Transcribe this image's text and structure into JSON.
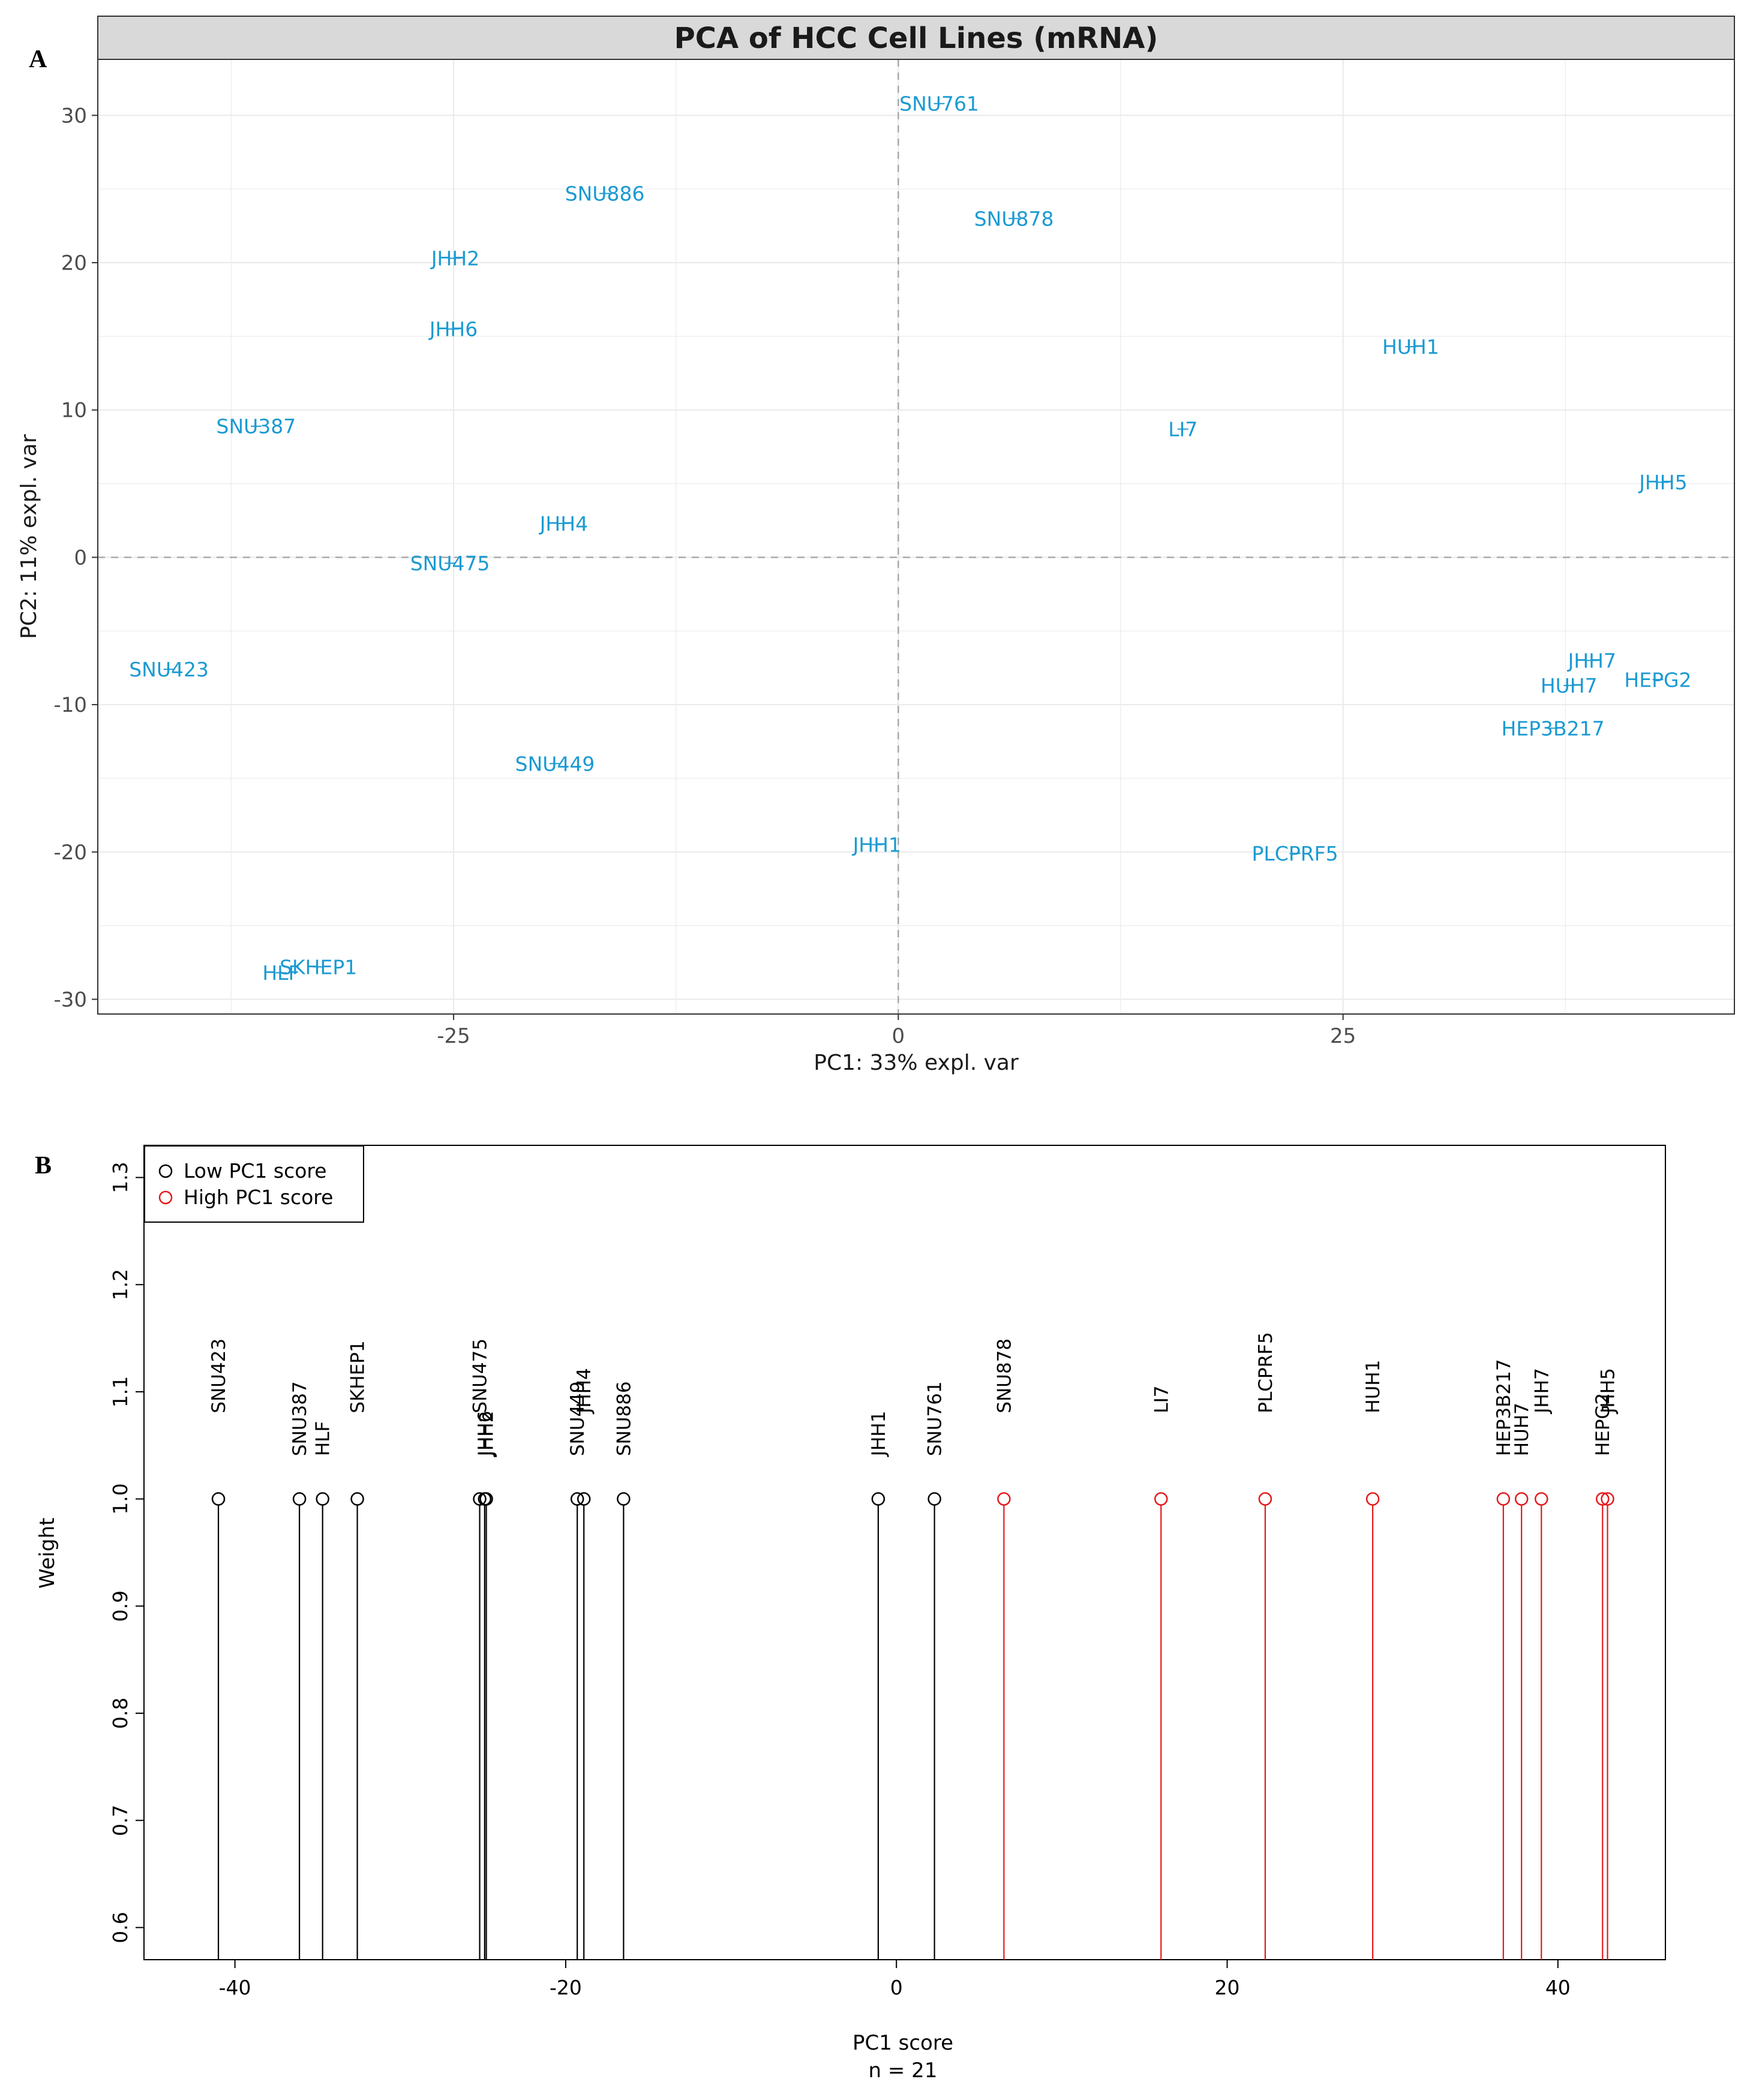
{
  "chart_data": [
    {
      "panel": "A",
      "type": "scatter",
      "title": "PCA of HCC Cell Lines (mRNA)",
      "xlabel": "PC1: 33% expl. var",
      "ylabel": "PC2: 11% expl. var",
      "xlim": [
        -45,
        47
      ],
      "ylim": [
        -31,
        33.8
      ],
      "xticks": [
        -25,
        0,
        25
      ],
      "xtick_labels": [
        "-25",
        "0",
        "25"
      ],
      "yticks": [
        -30,
        -20,
        -10,
        0,
        10,
        20,
        30
      ],
      "ytick_labels": [
        "-30",
        "-20",
        "-10",
        "0",
        "10",
        "20",
        "30"
      ],
      "reference_lines": {
        "x": 0,
        "y": 0,
        "style": "dashed"
      },
      "grid": true,
      "label_color": "#1B9AD2",
      "points": [
        {
          "label": "SNU761",
          "x": 2.3,
          "y": 30.8
        },
        {
          "label": "SNU886",
          "x": -16.5,
          "y": 24.7
        },
        {
          "label": "SNU878",
          "x": 6.5,
          "y": 23.0
        },
        {
          "label": "JHH2",
          "x": -24.9,
          "y": 20.3
        },
        {
          "label": "JHH6",
          "x": -25.0,
          "y": 15.5
        },
        {
          "label": "HUH1",
          "x": 28.8,
          "y": 14.3
        },
        {
          "label": "SNU387",
          "x": -36.1,
          "y": 8.9
        },
        {
          "label": "LI7",
          "x": 16.0,
          "y": 8.7
        },
        {
          "label": "JHH5",
          "x": 43.0,
          "y": 5.1
        },
        {
          "label": "JHH4",
          "x": -18.8,
          "y": 2.3
        },
        {
          "label": "SNU475",
          "x": -25.2,
          "y": -0.4
        },
        {
          "label": "SNU423",
          "x": -41.0,
          "y": -7.6
        },
        {
          "label": "JHH7",
          "x": 39.0,
          "y": -7.0
        },
        {
          "label": "HUH7",
          "x": 37.7,
          "y": -8.7
        },
        {
          "label": "HEPG2",
          "x": 42.7,
          "y": -8.3
        },
        {
          "label": "HEP3B217",
          "x": 36.8,
          "y": -11.6
        },
        {
          "label": "SNU449",
          "x": -19.3,
          "y": -14.0
        },
        {
          "label": "JHH1",
          "x": -1.2,
          "y": -19.5
        },
        {
          "label": "PLCPRF5",
          "x": 22.3,
          "y": -20.1
        },
        {
          "label": "SKHEP1",
          "x": -32.6,
          "y": -27.8
        },
        {
          "label": "HLF",
          "x": -34.7,
          "y": -28.2
        }
      ]
    },
    {
      "panel": "B",
      "type": "scatter",
      "subtype": "stem",
      "xlabel": "PC1 score",
      "xlabel_sub": "n = 21",
      "ylabel": "Weight",
      "xlim": [
        -45.5,
        46.5
      ],
      "ylim": [
        0.57,
        1.33
      ],
      "xticks": [
        -40,
        -20,
        0,
        20,
        40
      ],
      "xtick_labels": [
        "-40",
        "-20",
        "0",
        "20",
        "40"
      ],
      "yticks": [
        0.6,
        0.7,
        0.8,
        0.9,
        1.0,
        1.1,
        1.2,
        1.3
      ],
      "ytick_labels": [
        "0.6",
        "0.7",
        "0.8",
        "0.9",
        "1.0",
        "1.1",
        "1.2",
        "1.3"
      ],
      "legend": [
        {
          "label": "Low PC1 score",
          "color": "#000000"
        },
        {
          "label": "High PC1 score",
          "color": "#E41A1C"
        }
      ],
      "series": [
        {
          "name": "Low PC1 score",
          "color": "#000000",
          "points": [
            {
              "label": "SNU423",
              "x": -41.0,
              "y": 1.0,
              "label_row": 0
            },
            {
              "label": "SNU387",
              "x": -36.1,
              "y": 1.0,
              "label_row": 1
            },
            {
              "label": "HLF",
              "x": -34.7,
              "y": 1.0,
              "label_row": 1
            },
            {
              "label": "SKHEP1",
              "x": -32.6,
              "y": 1.0,
              "label_row": 0
            },
            {
              "label": "SNU475",
              "x": -25.2,
              "y": 1.0,
              "label_row": 0
            },
            {
              "label": "JHH6",
              "x": -24.9,
              "y": 1.0,
              "label_row": 1
            },
            {
              "label": "JHH2",
              "x": -24.8,
              "y": 1.0,
              "label_row": 1
            },
            {
              "label": "SNU449",
              "x": -19.3,
              "y": 1.0,
              "label_row": 1
            },
            {
              "label": "JHH4",
              "x": -18.9,
              "y": 1.0,
              "label_row": 0
            },
            {
              "label": "SNU886",
              "x": -16.5,
              "y": 1.0,
              "label_row": 1
            },
            {
              "label": "JHH1",
              "x": -1.1,
              "y": 1.0,
              "label_row": 1
            },
            {
              "label": "SNU761",
              "x": 2.3,
              "y": 1.0,
              "label_row": 1
            }
          ]
        },
        {
          "name": "High PC1 score",
          "color": "#E41A1C",
          "points": [
            {
              "label": "SNU878",
              "x": 6.5,
              "y": 1.0,
              "label_row": 0
            },
            {
              "label": "LI7",
              "x": 16.0,
              "y": 1.0,
              "label_row": 0
            },
            {
              "label": "PLCPRF5",
              "x": 22.3,
              "y": 1.0,
              "label_row": 0
            },
            {
              "label": "HUH1",
              "x": 28.8,
              "y": 1.0,
              "label_row": 0
            },
            {
              "label": "HEP3B217",
              "x": 36.7,
              "y": 1.0,
              "label_row": 1
            },
            {
              "label": "HUH7",
              "x": 37.8,
              "y": 1.0,
              "label_row": 1
            },
            {
              "label": "JHH7",
              "x": 39.0,
              "y": 1.0,
              "label_row": 0
            },
            {
              "label": "HEPG2",
              "x": 42.7,
              "y": 1.0,
              "label_row": 1
            },
            {
              "label": "JHH5",
              "x": 43.0,
              "y": 1.0,
              "label_row": 0
            }
          ]
        }
      ]
    }
  ],
  "panel_letters": {
    "a": "A",
    "b": "B"
  }
}
